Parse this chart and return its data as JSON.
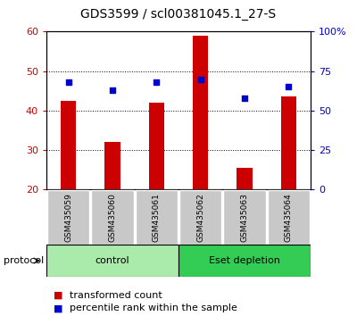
{
  "title": "GDS3599 / scl00381045.1_27-S",
  "samples": [
    "GSM435059",
    "GSM435060",
    "GSM435061",
    "GSM435062",
    "GSM435063",
    "GSM435064"
  ],
  "bar_values": [
    42.5,
    32.0,
    42.0,
    59.0,
    25.5,
    43.5
  ],
  "percentile_values": [
    68.0,
    63.0,
    68.0,
    70.0,
    58.0,
    65.0
  ],
  "bar_color": "#cc0000",
  "dot_color": "#0000cc",
  "ylim_left": [
    20,
    60
  ],
  "ylim_right": [
    0,
    100
  ],
  "left_yticks": [
    20,
    30,
    40,
    50,
    60
  ],
  "right_yticks": [
    0,
    25,
    50,
    75,
    100
  ],
  "right_yticklabels": [
    "0",
    "25",
    "50",
    "75",
    "100%"
  ],
  "groups": [
    {
      "label": "control",
      "indices": [
        0,
        1,
        2
      ],
      "color": "#aaeaaa"
    },
    {
      "label": "Eset depletion",
      "indices": [
        3,
        4,
        5
      ],
      "color": "#33cc55"
    }
  ],
  "protocol_label": "protocol",
  "legend_bar_label": "transformed count",
  "legend_dot_label": "percentile rank within the sample",
  "tick_area_color": "#c8c8c8",
  "title_fontsize": 10,
  "legend_fontsize": 8
}
